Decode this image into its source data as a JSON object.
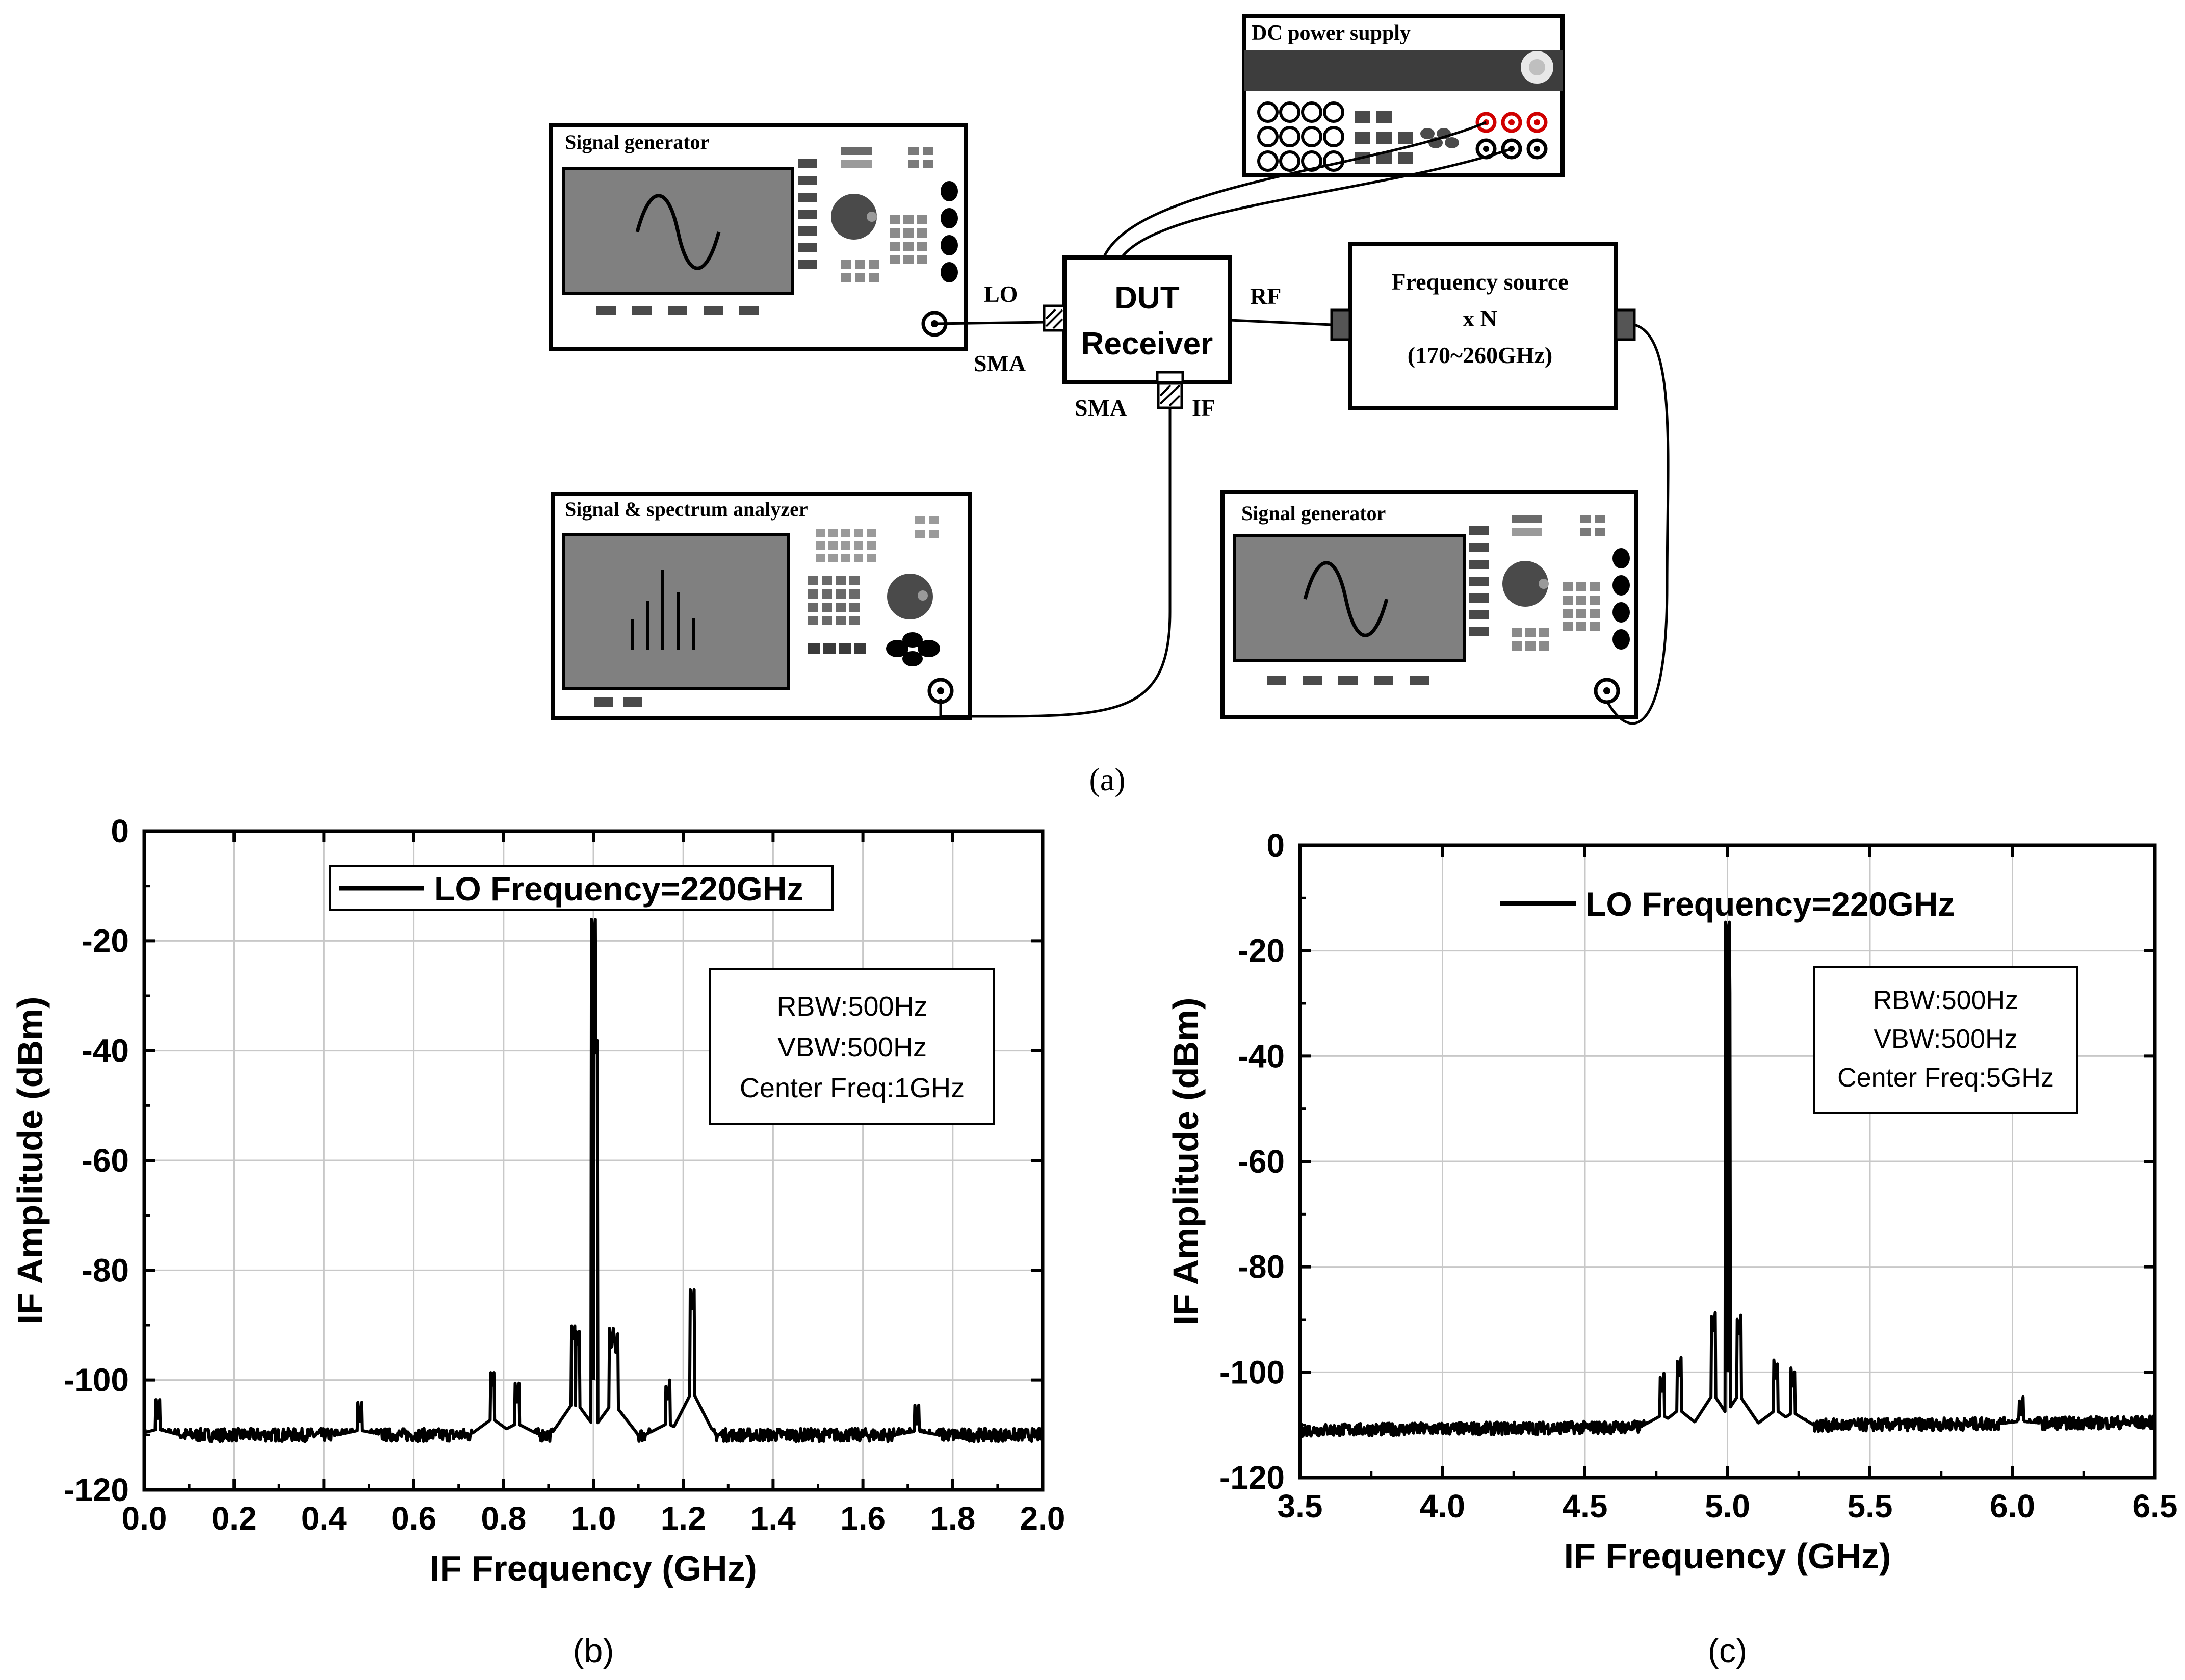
{
  "setup": {
    "dc_supply_label": "DC power supply",
    "siggen_lo_label": "Signal generator",
    "siggen_rf_label": "Signal generator",
    "analyzer_label": "Signal & spectrum analyzer",
    "dut_line1": "DUT",
    "dut_line2": "Receiver",
    "freq_src_line1": "Frequency source",
    "freq_src_line2": "x N",
    "freq_src_line3": "(170~260GHz)",
    "port_lo": "LO",
    "port_rf": "RF",
    "port_if": "IF",
    "sma_lo": "SMA",
    "sma_if": "SMA",
    "caption": "(a)"
  },
  "chart_data": [
    {
      "type": "line",
      "panel": "b",
      "caption": "(b)",
      "xlabel": "IF Frequency (GHz)",
      "ylabel": "IF Amplitude (dBm)",
      "xlim": [
        0.0,
        2.0
      ],
      "ylim": [
        -120,
        0
      ],
      "xticks": [
        "0.0",
        "0.2",
        "0.4",
        "0.6",
        "0.8",
        "1.0",
        "1.2",
        "1.4",
        "1.6",
        "1.8",
        "2.0"
      ],
      "yticks": [
        "0",
        "-20",
        "-40",
        "-60",
        "-80",
        "-100",
        "-120"
      ],
      "grid": true,
      "legend": "LO Frequency=220GHz",
      "info": [
        "RBW:500Hz",
        "VBW:500Hz",
        "Center Freq:1GHz"
      ],
      "baseline": -110,
      "peaks": [
        [
          1.0,
          -19.5
        ],
        [
          1.005,
          -41
        ],
        [
          0.955,
          -93
        ],
        [
          0.965,
          -94
        ],
        [
          1.04,
          -94
        ],
        [
          1.05,
          -95
        ],
        [
          1.22,
          -87
        ],
        [
          0.775,
          -101.5
        ],
        [
          0.83,
          -104
        ],
        [
          1.165,
          -104
        ],
        [
          0.03,
          -107
        ],
        [
          0.48,
          -107.5
        ],
        [
          1.72,
          -108
        ]
      ],
      "series": [
        {
          "name": "LO Frequency=220GHz"
        }
      ]
    },
    {
      "type": "line",
      "panel": "c",
      "caption": "(c)",
      "xlabel": "IF Frequency (GHz)",
      "ylabel": "IF Amplitude (dBm)",
      "xlim": [
        3.5,
        6.5
      ],
      "ylim": [
        -120,
        0
      ],
      "xticks": [
        "3.5",
        "4.0",
        "4.5",
        "5.0",
        "5.5",
        "6.0",
        "6.5"
      ],
      "yticks": [
        "0",
        "-20",
        "-40",
        "-60",
        "-80",
        "-100",
        "-120"
      ],
      "grid": true,
      "legend": "LO Frequency=220GHz",
      "info": [
        "RBW:500Hz",
        "VBW:500Hz",
        "Center Freq:5GHz"
      ],
      "baseline_start": -111,
      "baseline_end": -109.5,
      "peaks": [
        [
          5.0,
          -18
        ],
        [
          5.003,
          -31
        ],
        [
          4.95,
          -92.5
        ],
        [
          5.04,
          -93
        ],
        [
          4.77,
          -104
        ],
        [
          4.83,
          -101
        ],
        [
          5.17,
          -101.5
        ],
        [
          5.23,
          -103
        ],
        [
          6.03,
          -108.5
        ]
      ],
      "series": [
        {
          "name": "LO Frequency=220GHz"
        }
      ]
    }
  ]
}
